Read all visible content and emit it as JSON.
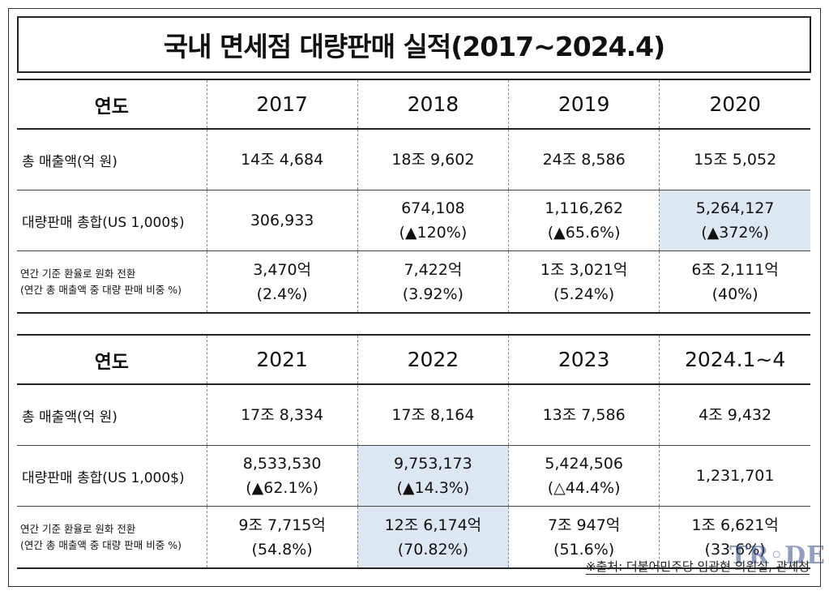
{
  "title": "국내 면세점 대량판매 실적(2017~2024.4)",
  "tables": [
    {
      "header": {
        "label": "연도",
        "years": [
          "2017",
          "2018",
          "2019",
          "2020"
        ]
      },
      "rows": {
        "sales": {
          "label": "총 매출액(억 원)",
          "values": [
            "14조 4,684",
            "18조 9,602",
            "24조 8,586",
            "15조 5,052"
          ]
        },
        "bulk": {
          "label": "대량판매 총합(US 1,000$)",
          "values": [
            {
              "main": "306,933",
              "change": ""
            },
            {
              "main": "674,108",
              "change": "(▲120%)"
            },
            {
              "main": "1,116,262",
              "change": "(▲65.6%)"
            },
            {
              "main": "5,264,127",
              "change": "(▲372%)"
            }
          ]
        },
        "krw": {
          "label_line1": "연간 기준 환율로 원화 전환",
          "label_line2": "(연간 총 매출액 중 대량 판매 비중 %)",
          "values": [
            {
              "main": "3,470억",
              "share": "(2.4%)"
            },
            {
              "main": "7,422억",
              "share": "(3.92%)"
            },
            {
              "main": "1조 3,021억",
              "share": "(5.24%)"
            },
            {
              "main": "6조 2,111억",
              "share": "(40%)"
            }
          ]
        }
      }
    },
    {
      "header": {
        "label": "연도",
        "years": [
          "2021",
          "2022",
          "2023",
          "2024.1~4"
        ]
      },
      "rows": {
        "sales": {
          "label": "총 매출액(억 원)",
          "values": [
            "17조 8,334",
            "17조 8,164",
            "13조 7,586",
            "4조 9,432"
          ]
        },
        "bulk": {
          "label": "대량판매 총합(US 1,000$)",
          "values": [
            {
              "main": "8,533,530",
              "change": "(▲62.1%)"
            },
            {
              "main": "9,753,173",
              "change": "(▲14.3%)"
            },
            {
              "main": "5,424,506",
              "change": "(△44.4%)"
            },
            {
              "main": "1,231,701",
              "change": ""
            }
          ]
        },
        "krw": {
          "label_line1": "연간 기준 환율로 원화 전환",
          "label_line2": "(연간 총 매출액 중 대량 판매 비중 %)",
          "values": [
            {
              "main": "9조 7,715억",
              "share": "(54.8%)"
            },
            {
              "main": "12조 6,174억",
              "share": "(70.82%)"
            },
            {
              "main": "7조 947억",
              "share": "(51.6%)"
            },
            {
              "main": "1조 6,621억",
              "share": "(33.6%)"
            }
          ]
        }
      }
    }
  ],
  "source": "※출처: 더불어민주당 임광현 의원실, 관세청",
  "watermark": "TR◦DE",
  "colors": {
    "highlight": "#dde7f2",
    "border": "#222222"
  }
}
